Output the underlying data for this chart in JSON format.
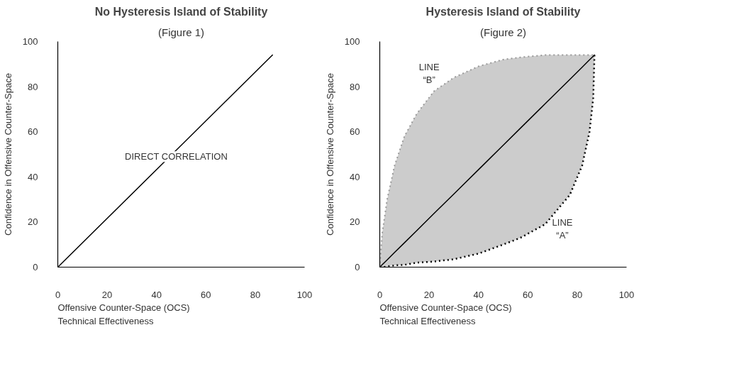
{
  "chart_data": [
    {
      "type": "line",
      "title": "No Hysteresis Island of Stability",
      "subtitle": "(Figure 1)",
      "xlabel": "Offensive Counter-Space (OCS)\nTechnical Effectiveness",
      "ylabel": "Confidence in Offensive Counter-Space",
      "xlim": [
        0,
        100
      ],
      "ylim": [
        0,
        100
      ],
      "xticks": [
        0,
        20,
        40,
        60,
        80,
        100
      ],
      "yticks": [
        0,
        20,
        40,
        60,
        80,
        100
      ],
      "grid": false,
      "line_style": "solid",
      "annotations": [
        "DIRECT CORRELATION"
      ],
      "series": [
        {
          "color": "#000000",
          "x": [
            0,
            87
          ],
          "values": [
            0,
            94
          ]
        }
      ]
    },
    {
      "type": "line",
      "title": "Hysteresis Island of Stability",
      "subtitle": "(Figure 2)",
      "xlabel": "Offensive Counter-Space (OCS)\nTechnical Effectiveness",
      "ylabel": "Confidence in Offensive Counter-Space",
      "xlim": [
        0,
        100
      ],
      "ylim": [
        0,
        100
      ],
      "xticks": [
        0,
        20,
        40,
        60,
        80,
        100
      ],
      "yticks": [
        0,
        20,
        40,
        60,
        80,
        100
      ],
      "grid": false,
      "line_style": "solid",
      "annotations": [
        "LINE\n“B”",
        "LINE\n“A”"
      ],
      "series": [
        {
          "color": "#000000",
          "x": [
            0,
            1,
            3,
            6,
            10,
            15,
            22,
            30,
            40,
            50,
            57,
            67,
            77,
            82,
            85,
            86.5,
            87
          ],
          "values": [
            0,
            1.1,
            3.2,
            6.5,
            10.8,
            16.2,
            23.8,
            32.4,
            43.2,
            54,
            61.6,
            72.4,
            83.2,
            88.6,
            91.9,
            93.5,
            94
          ],
          "lower": [
            0,
            0,
            0.3,
            0.8,
            1,
            2,
            2.5,
            3.5,
            6,
            10,
            13,
            19,
            32,
            45,
            60,
            75,
            94
          ],
          "upper": [
            0,
            15,
            30,
            45,
            58,
            68,
            78,
            84,
            89,
            92,
            93,
            94,
            94,
            94,
            94,
            94,
            94
          ]
        }
      ]
    }
  ]
}
